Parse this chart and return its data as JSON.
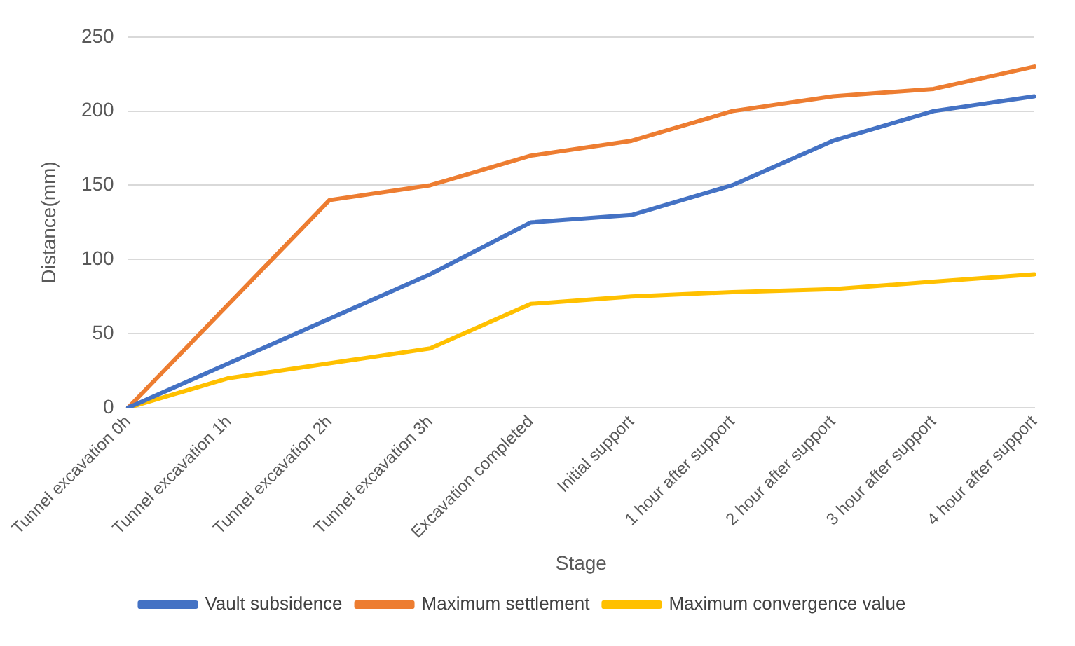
{
  "chart_data": {
    "type": "line",
    "xlabel": "Stage",
    "ylabel": "Distance(mm)",
    "categories": [
      "Tunnel excavation 0h",
      "Tunnel excavation 1h",
      "Tunnel excavation 2h",
      "Tunnel excavation 3h",
      "Excavation completed",
      "Initial support",
      "1 hour after support",
      "2 hour after support",
      "3 hour after support",
      "4 hour after support"
    ],
    "series": [
      {
        "name": "Vault subsidence",
        "color": "#4472c4",
        "values": [
          0,
          30,
          60,
          90,
          125,
          130,
          150,
          180,
          200,
          210
        ]
      },
      {
        "name": "Maximum settlement",
        "color": "#ed7d31",
        "values": [
          0,
          70,
          140,
          150,
          170,
          180,
          200,
          210,
          215,
          230
        ]
      },
      {
        "name": "Maximum convergence value",
        "color": "#ffc000",
        "values": [
          0,
          20,
          30,
          40,
          70,
          75,
          78,
          80,
          85,
          90
        ]
      }
    ],
    "ylim": [
      0,
      250
    ],
    "yticks": [
      0,
      50,
      100,
      150,
      200,
      250
    ],
    "grid": "y",
    "legend": "bottom",
    "marker": "none",
    "line_style": "solid"
  }
}
